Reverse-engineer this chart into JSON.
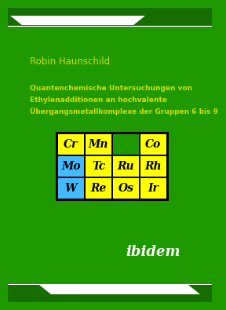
{
  "bg_color": "#1e9a00",
  "bg_color_dark": "#176e00",
  "white_color": "#ffffff",
  "author": "Robin Haunschild",
  "title_line1": "Quantenchemische Untersuchungen von",
  "title_line2": "Ethylenadditionen an hochvalente",
  "title_line3": "Übergangsmetallkomplexe der Gruppen 6 bis 9",
  "publisher": "ibidem",
  "grid": [
    [
      "Cr",
      "Mn",
      "",
      "Co"
    ],
    [
      "Mo",
      "Tc",
      "Ru",
      "Rh"
    ],
    [
      "W",
      "Re",
      "Os",
      "Ir"
    ]
  ],
  "cell_colors": [
    [
      "#ffff00",
      "#ffff00",
      "#1e9a00",
      "#ffff00"
    ],
    [
      "#44bbff",
      "#ffff00",
      "#ffff00",
      "#ffff00"
    ],
    [
      "#44bbff",
      "#ffff00",
      "#ffff00",
      "#ffff00"
    ]
  ],
  "cell_text_color": "#000000",
  "grid_border_color": "#000000"
}
